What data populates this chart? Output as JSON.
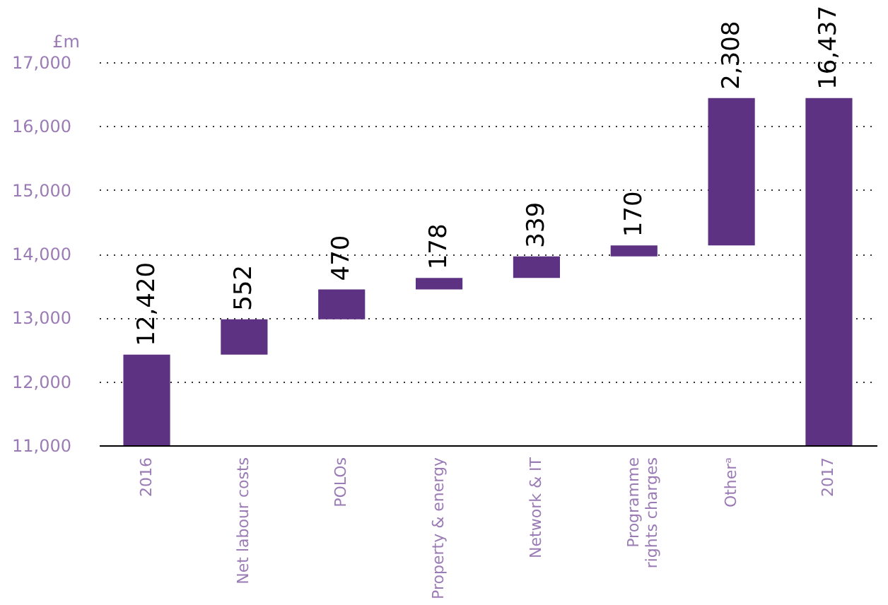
{
  "chart_data": {
    "type": "bar",
    "ylabel": "£m",
    "categories": [
      "2016",
      "Net labour costs",
      "POLOs",
      "Property & energy",
      "Network & IT",
      "Programme\nrights charges",
      "Otherᵃ",
      "2017"
    ],
    "base": [
      11000,
      12420,
      12972,
      13442,
      13620,
      13959,
      14129,
      11000
    ],
    "values": [
      1420,
      552,
      470,
      178,
      339,
      170,
      2308,
      5437
    ],
    "value_labels": [
      "12,420",
      "552",
      "470",
      "178",
      "339",
      "170",
      "2,308",
      "16,437"
    ],
    "color": "#5e3282",
    "ylim": [
      11000,
      17000
    ],
    "yticks": [
      {
        "value": 11000,
        "label": "11,000"
      },
      {
        "value": 12000,
        "label": "12,000"
      },
      {
        "value": 13000,
        "label": "13,000"
      },
      {
        "value": 14000,
        "label": "14,000"
      },
      {
        "value": 15000,
        "label": "15,000"
      },
      {
        "value": 16000,
        "label": "16,000"
      },
      {
        "value": 17000,
        "label": "17,000"
      }
    ],
    "grid": "y"
  }
}
